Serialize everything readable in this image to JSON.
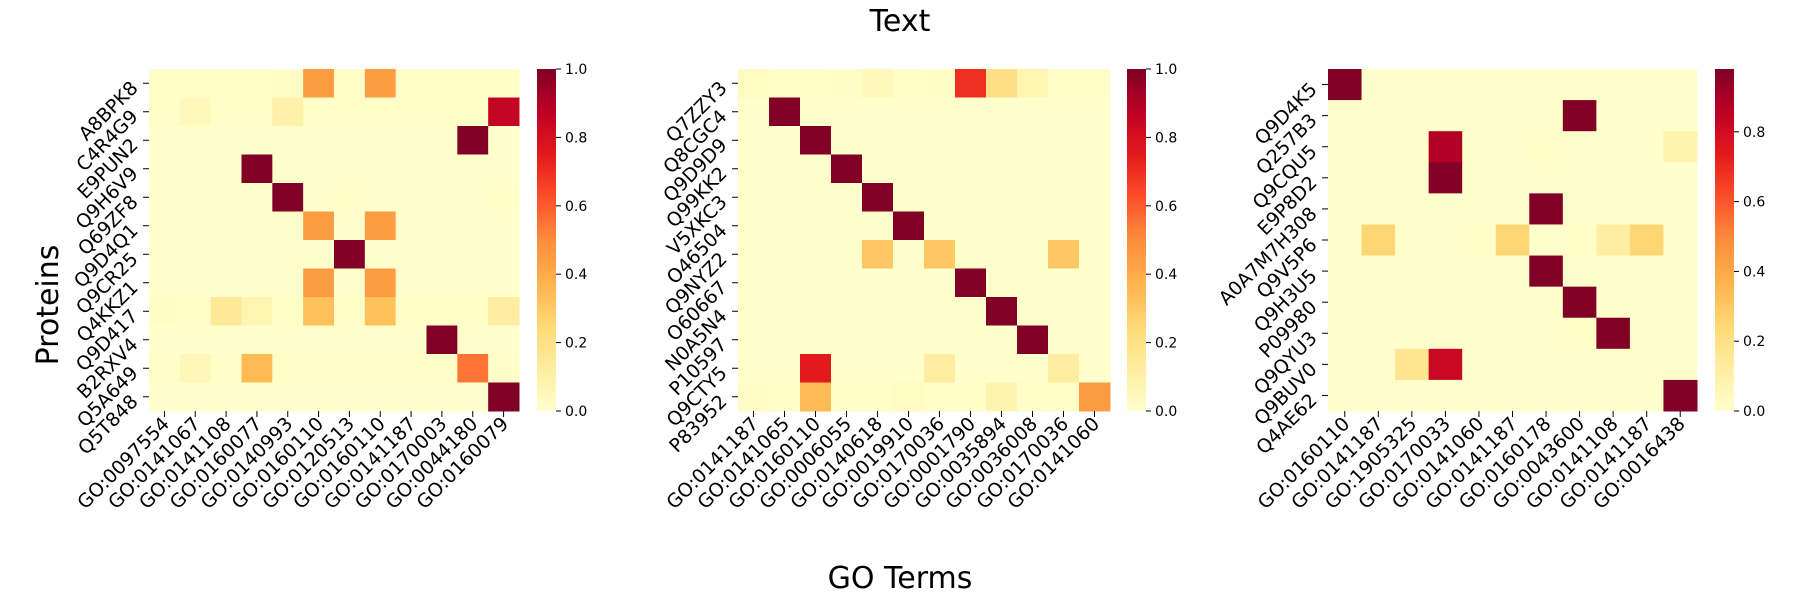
{
  "title": "Text",
  "xlabel": "GO Terms",
  "ylabel": "Proteins",
  "colormap": [
    "#ffffcc",
    "#ffeda0",
    "#fed976",
    "#feb24c",
    "#fd8d3c",
    "#fc4e2a",
    "#e31a1c",
    "#bd0026",
    "#800026"
  ],
  "chart_data": [
    {
      "type": "heatmap",
      "rows": [
        "A8BPK8",
        "C4R4G9",
        "E9PUN2",
        "Q9H6V9",
        "Q69ZF8",
        "Q9D4Q1",
        "Q9CR25",
        "Q4KKZ1",
        "Q9D417",
        "B2RXV4",
        "Q5A649",
        "Q5T848"
      ],
      "columns": [
        "GO:0097554",
        "GO:0141067",
        "GO:0141108",
        "GO:0160077",
        "GO:0140993",
        "GO:0160110",
        "GO:0120513",
        "GO:0160110",
        "GO:0141187",
        "GO:0170003",
        "GO:0044180",
        "GO:0160079"
      ],
      "values": [
        [
          0.01,
          0.01,
          0.01,
          0.01,
          0.02,
          0.45,
          0.01,
          0.45,
          0.01,
          0.01,
          0.01,
          0.01
        ],
        [
          0.01,
          0.05,
          0.01,
          0.01,
          0.1,
          0.01,
          0.01,
          0.01,
          0.01,
          0.01,
          0.01,
          0.85
        ],
        [
          0,
          0,
          0,
          0,
          0,
          0,
          0,
          0,
          0,
          0,
          1.0,
          0
        ],
        [
          0,
          0,
          0,
          1.0,
          0,
          0,
          0,
          0,
          0,
          0,
          0,
          0
        ],
        [
          0,
          0,
          0,
          0,
          1.0,
          0,
          0.01,
          0,
          0,
          0,
          0,
          0.01
        ],
        [
          0,
          0,
          0,
          0,
          0,
          0.45,
          0,
          0.45,
          0,
          0,
          0,
          0
        ],
        [
          0,
          0,
          0,
          0,
          0,
          0,
          1.0,
          0,
          0,
          0,
          0,
          0
        ],
        [
          0,
          0,
          0,
          0,
          0,
          0.45,
          0,
          0.45,
          0,
          0,
          0,
          0
        ],
        [
          0.02,
          0.01,
          0.15,
          0.07,
          0.01,
          0.33,
          0.01,
          0.33,
          0.01,
          0.01,
          0.01,
          0.12
        ],
        [
          0,
          0,
          0,
          0,
          0,
          0,
          0,
          0,
          0,
          1.0,
          0,
          0
        ],
        [
          0.01,
          0.06,
          0.01,
          0.35,
          0.01,
          0.01,
          0.01,
          0.01,
          0.01,
          0.01,
          0.55,
          0.01
        ],
        [
          0,
          0,
          0,
          0,
          0,
          0,
          0,
          0,
          0,
          0,
          0,
          1.0
        ]
      ],
      "vmin": 0,
      "vmax": 1.0,
      "colorbar_ticks": [
        0.0,
        0.2,
        0.4,
        0.6,
        0.8,
        1.0
      ]
    },
    {
      "type": "heatmap",
      "rows": [
        "Q7ZZY3",
        "Q8CGC4",
        "Q9D9D9",
        "Q99KK2",
        "V5XKC3",
        "O46504",
        "Q9NYZ2",
        "O60667",
        "N0A5N4",
        "P10597",
        "Q9CTY5",
        "P83952"
      ],
      "columns": [
        "GO:0141187",
        "GO:0141065",
        "GO:0160110",
        "GO:0006055",
        "GO:0140618",
        "GO:0019910",
        "GO:0170036",
        "GO:0001790",
        "GO:0035894",
        "GO:0036008",
        "GO:0170036",
        "GO:0141060"
      ],
      "values": [
        [
          0.03,
          0.01,
          0.01,
          0.02,
          0.05,
          0.01,
          0.02,
          0.7,
          0.2,
          0.07,
          0.01,
          0.01
        ],
        [
          0,
          1.0,
          0,
          0,
          0,
          0,
          0,
          0,
          0,
          0,
          0,
          0
        ],
        [
          0,
          0,
          1.0,
          0,
          0,
          0,
          0,
          0,
          0,
          0,
          0,
          0
        ],
        [
          0,
          0,
          0,
          1.0,
          0,
          0,
          0,
          0,
          0,
          0,
          0,
          0
        ],
        [
          0,
          0,
          0,
          0,
          1.0,
          0,
          0,
          0,
          0,
          0,
          0,
          0
        ],
        [
          0,
          0,
          0,
          0,
          0,
          1.0,
          0,
          0,
          0,
          0,
          0,
          0
        ],
        [
          0,
          0,
          0,
          0,
          0.3,
          0,
          0.3,
          0,
          0,
          0,
          0.3,
          0
        ],
        [
          0,
          0,
          0,
          0,
          0,
          0,
          0,
          1.0,
          0,
          0,
          0,
          0
        ],
        [
          0,
          0,
          0,
          0,
          0,
          0,
          0,
          0,
          1.0,
          0,
          0,
          0
        ],
        [
          0,
          0,
          0,
          0,
          0,
          0,
          0,
          0,
          0,
          1.0,
          0,
          0
        ],
        [
          0,
          0,
          0.75,
          0,
          0,
          0,
          0.12,
          0,
          0,
          0,
          0.12,
          0
        ],
        [
          0.02,
          0.01,
          0.35,
          0.01,
          0.01,
          0.03,
          0.01,
          0.01,
          0.08,
          0.01,
          0.01,
          0.45
        ]
      ],
      "vmin": 0,
      "vmax": 1.0,
      "colorbar_ticks": [
        0.0,
        0.2,
        0.4,
        0.6,
        0.8,
        1.0
      ]
    },
    {
      "type": "heatmap",
      "rows": [
        "Q9D4K5",
        "Q257B3",
        "Q9CQU5",
        "E9P8D2",
        "A0A7M7H308",
        "Q9V5P6",
        "Q9H3U5",
        "P09980",
        "Q9QYU3",
        "Q9BUV0",
        "Q4AE62"
      ],
      "columns": [
        "GO:0160110",
        "GO:0141187",
        "GO:1905325",
        "GO:0170033",
        "GO:0141060",
        "GO:0141187",
        "GO:0160178",
        "GO:0043600",
        "GO:0141108",
        "GO:0141187",
        "GO:0016438"
      ],
      "values": [
        [
          0.98,
          0,
          0,
          0,
          0,
          0,
          0,
          0,
          0,
          0,
          0
        ],
        [
          0,
          0,
          0,
          0,
          0,
          0,
          0,
          0.98,
          0,
          0,
          0
        ],
        [
          0,
          0,
          0,
          0.88,
          0,
          0,
          0.01,
          0,
          0,
          0,
          0.08
        ],
        [
          0,
          0,
          0,
          0.97,
          0,
          0,
          0,
          0,
          0,
          0,
          0
        ],
        [
          0,
          0,
          0,
          0,
          0,
          0,
          0.98,
          0,
          0,
          0,
          0
        ],
        [
          0,
          0.25,
          0,
          0,
          0.01,
          0.25,
          0,
          0.01,
          0.12,
          0.25,
          0
        ],
        [
          0,
          0,
          0,
          0,
          0,
          0,
          0.98,
          0,
          0,
          0,
          0
        ],
        [
          0,
          0,
          0,
          0,
          0,
          0,
          0,
          0.98,
          0,
          0,
          0
        ],
        [
          0,
          0,
          0,
          0,
          0,
          0,
          0,
          0.01,
          0.98,
          0,
          0
        ],
        [
          0,
          0,
          0.17,
          0.82,
          0,
          0,
          0,
          0,
          0,
          0,
          0
        ],
        [
          0,
          0,
          0,
          0,
          0,
          0,
          0,
          0,
          0,
          0,
          0.98
        ]
      ],
      "vmin": 0,
      "vmax": 0.98,
      "colorbar_ticks": [
        0.0,
        0.2,
        0.4,
        0.6,
        0.8
      ]
    }
  ]
}
